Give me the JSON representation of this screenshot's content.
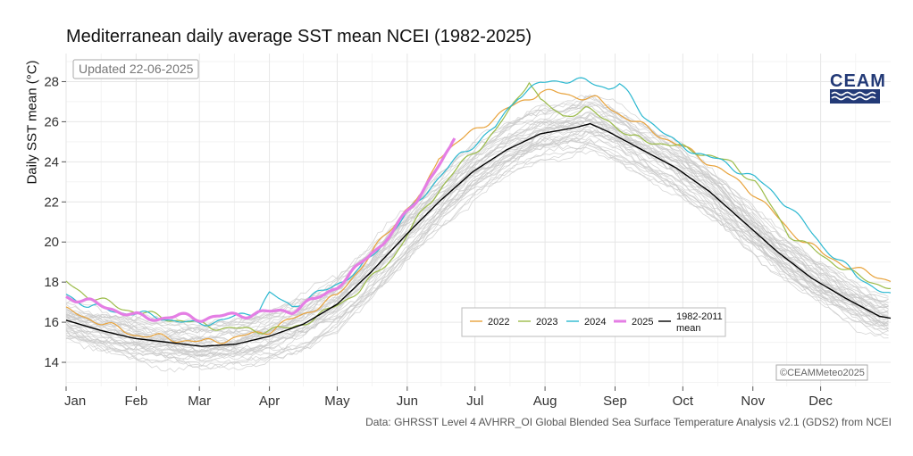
{
  "chart_data": {
    "type": "line",
    "title": "Mediterranean daily average SST mean NCEI (1982-2025)",
    "xlabel": "",
    "ylabel": "Daily SST mean (°C)",
    "xlim": [
      0,
      365
    ],
    "ylim": [
      12.8,
      29.4
    ],
    "yticks": [
      14,
      16,
      18,
      20,
      22,
      24,
      26,
      28
    ],
    "month_ticks": [
      {
        "label": "Jan",
        "day": 0
      },
      {
        "label": "Feb",
        "day": 31
      },
      {
        "label": "Mar",
        "day": 59
      },
      {
        "label": "Apr",
        "day": 90
      },
      {
        "label": "May",
        "day": 120
      },
      {
        "label": "Jun",
        "day": 151
      },
      {
        "label": "Jul",
        "day": 181
      },
      {
        "label": "Aug",
        "day": 212
      },
      {
        "label": "Sep",
        "day": 243
      },
      {
        "label": "Oct",
        "day": 273
      },
      {
        "label": "Nov",
        "day": 304
      },
      {
        "label": "Dec",
        "day": 334
      }
    ],
    "updated_note": "Updated 22-06-2025",
    "copyright": "©CEAMMeteo2025",
    "source": "Data: GHRSST Level 4 AVHRR_OI Global Blended Sea Surface Temperature Analysis v2.1 (GDS2) from NCEI",
    "logo_text": "CEAM",
    "background_series_count": 40,
    "legend": [
      {
        "name": "2022",
        "color": "#e8a33c"
      },
      {
        "name": "2023",
        "color": "#9cbc4a"
      },
      {
        "name": "2024",
        "color": "#2bb8d0"
      },
      {
        "name": "2025",
        "color": "#e47ee4"
      },
      {
        "name": "1982-2011",
        "name2": "mean",
        "color": "#000000"
      }
    ],
    "series": [
      {
        "name": "1982-2011 mean",
        "color": "#000000",
        "x": [
          0,
          15,
          30,
          45,
          60,
          75,
          90,
          105,
          120,
          135,
          150,
          165,
          180,
          195,
          210,
          225,
          232,
          240,
          255,
          270,
          285,
          300,
          315,
          330,
          345,
          360,
          365
        ],
        "y": [
          16.1,
          15.6,
          15.2,
          15.0,
          14.8,
          14.9,
          15.3,
          15.9,
          16.9,
          18.5,
          20.3,
          22.0,
          23.5,
          24.6,
          25.4,
          25.7,
          25.9,
          25.5,
          24.6,
          23.7,
          22.5,
          21.0,
          19.5,
          18.2,
          17.2,
          16.3,
          16.2
        ]
      },
      {
        "name": "2022",
        "color": "#e8a33c",
        "x": [
          0,
          15,
          30,
          45,
          60,
          75,
          90,
          105,
          120,
          135,
          150,
          158,
          165,
          180,
          195,
          210,
          220,
          235,
          245,
          260,
          275,
          290,
          305,
          320,
          335,
          350,
          365
        ],
        "y": [
          16.6,
          16.0,
          15.4,
          15.2,
          15.0,
          15.2,
          15.6,
          16.4,
          17.3,
          19.4,
          21.6,
          22.4,
          24.3,
          25.5,
          26.6,
          27.5,
          27.4,
          27.1,
          26.4,
          25.5,
          24.6,
          23.6,
          22.4,
          20.6,
          19.4,
          18.6,
          18.1
        ]
      },
      {
        "name": "2023",
        "color": "#9cbc4a",
        "x": [
          0,
          10,
          25,
          40,
          55,
          70,
          85,
          100,
          115,
          130,
          145,
          160,
          175,
          190,
          200,
          205,
          210,
          220,
          230,
          240,
          250,
          265,
          280,
          295,
          305,
          320,
          335,
          350,
          365
        ],
        "y": [
          18.0,
          17.3,
          16.7,
          16.3,
          16.0,
          15.7,
          15.6,
          15.7,
          16.5,
          17.6,
          19.3,
          21.9,
          23.9,
          25.5,
          27.2,
          28.1,
          27.0,
          26.3,
          26.6,
          26.1,
          25.2,
          24.9,
          24.5,
          23.9,
          23.0,
          20.4,
          19.3,
          18.3,
          17.7
        ]
      },
      {
        "name": "2024",
        "color": "#2bb8d0",
        "x": [
          0,
          10,
          25,
          40,
          55,
          70,
          85,
          90,
          100,
          115,
          130,
          145,
          160,
          175,
          190,
          200,
          210,
          220,
          230,
          240,
          245,
          255,
          270,
          290,
          305,
          320,
          335,
          350,
          365
        ],
        "y": [
          17.4,
          16.8,
          16.5,
          16.3,
          15.9,
          16.1,
          16.6,
          17.4,
          16.8,
          17.6,
          18.6,
          20.6,
          22.6,
          24.4,
          25.7,
          27.3,
          27.9,
          28.1,
          28.0,
          27.7,
          27.9,
          26.4,
          24.9,
          24.0,
          23.2,
          21.8,
          19.8,
          18.3,
          17.3
        ]
      },
      {
        "name": "2025",
        "color": "#e47ee4",
        "x": [
          0,
          10,
          20,
          30,
          40,
          50,
          60,
          70,
          80,
          90,
          100,
          110,
          120,
          130,
          135,
          140,
          145,
          150,
          155,
          160,
          165,
          170,
          172
        ],
        "y": [
          17.3,
          17.0,
          16.7,
          16.3,
          16.2,
          16.3,
          16.2,
          16.3,
          16.4,
          16.5,
          16.6,
          17.1,
          17.8,
          18.8,
          19.5,
          19.9,
          20.6,
          21.3,
          22.1,
          23.0,
          23.8,
          24.6,
          25.1
        ]
      }
    ]
  }
}
